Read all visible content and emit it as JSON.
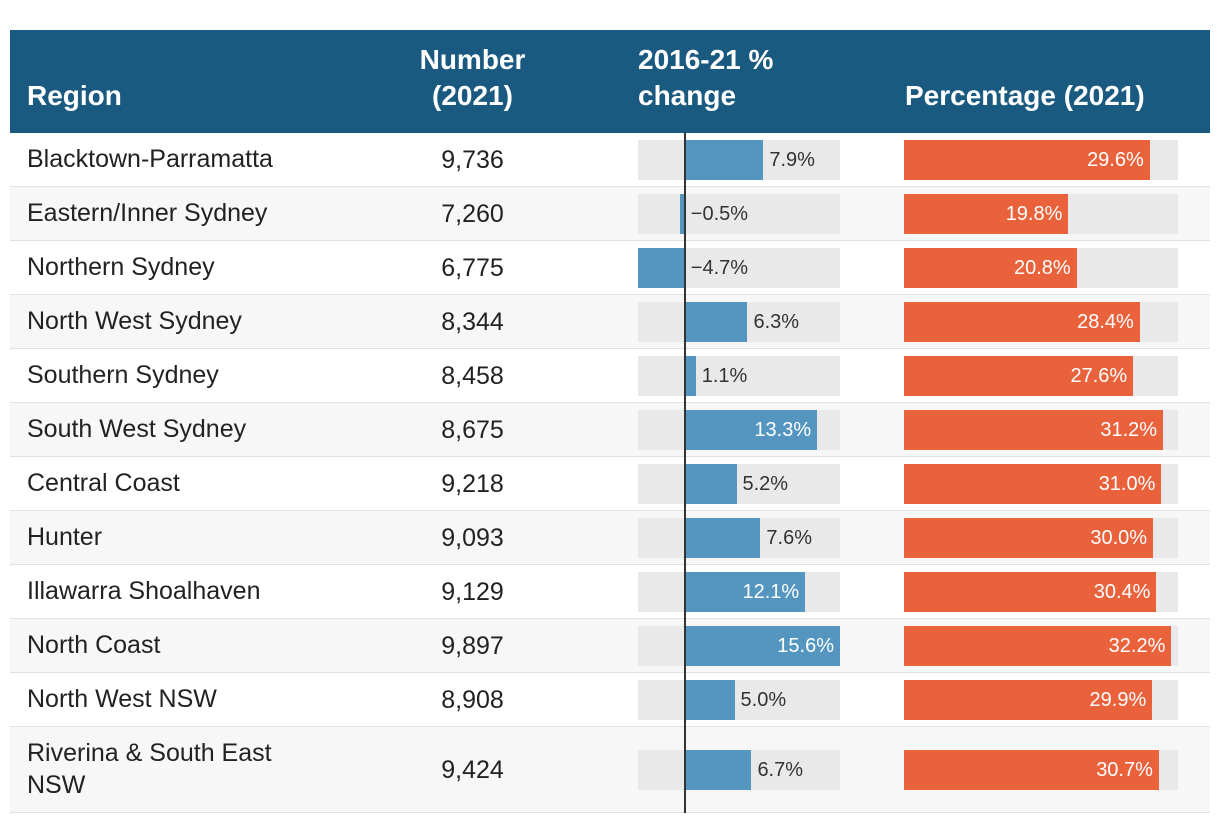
{
  "columns": {
    "region": "Region",
    "number": "Number (2021)",
    "change": "2016-21 % change",
    "percentage": "Percentage (2021)"
  },
  "colors": {
    "header_bg": "#1a5a80",
    "change_bar": "#5496c0",
    "percentage_bar": "#ea623c",
    "bar_background": "#e9e9e9"
  },
  "chart_data": {
    "type": "table",
    "title": "",
    "change_range": [
      -4.7,
      15.6
    ],
    "percentage_range": [
      0,
      33.0
    ],
    "rows": [
      {
        "region": "Blacktown-Parramatta",
        "number": "9,736",
        "change": 7.9,
        "change_label": "7.9%",
        "percentage": 29.6,
        "percentage_label": "29.6%"
      },
      {
        "region": "Eastern/Inner Sydney",
        "number": "7,260",
        "change": -0.5,
        "change_label": "−0.5%",
        "percentage": 19.8,
        "percentage_label": "19.8%"
      },
      {
        "region": "Northern Sydney",
        "number": "6,775",
        "change": -4.7,
        "change_label": "−4.7%",
        "percentage": 20.8,
        "percentage_label": "20.8%"
      },
      {
        "region": "North West Sydney",
        "number": "8,344",
        "change": 6.3,
        "change_label": "6.3%",
        "percentage": 28.4,
        "percentage_label": "28.4%"
      },
      {
        "region": "Southern Sydney",
        "number": "8,458",
        "change": 1.1,
        "change_label": "1.1%",
        "percentage": 27.6,
        "percentage_label": "27.6%"
      },
      {
        "region": "South West Sydney",
        "number": "8,675",
        "change": 13.3,
        "change_label": "13.3%",
        "percentage": 31.2,
        "percentage_label": "31.2%"
      },
      {
        "region": "Central Coast",
        "number": "9,218",
        "change": 5.2,
        "change_label": "5.2%",
        "percentage": 31.0,
        "percentage_label": "31.0%"
      },
      {
        "region": "Hunter",
        "number": "9,093",
        "change": 7.6,
        "change_label": "7.6%",
        "percentage": 30.0,
        "percentage_label": "30.0%"
      },
      {
        "region": "Illawarra Shoalhaven",
        "number": "9,129",
        "change": 12.1,
        "change_label": "12.1%",
        "percentage": 30.4,
        "percentage_label": "30.4%"
      },
      {
        "region": "North Coast",
        "number": "9,897",
        "change": 15.6,
        "change_label": "15.6%",
        "percentage": 32.2,
        "percentage_label": "32.2%"
      },
      {
        "region": "North West NSW",
        "number": "8,908",
        "change": 5.0,
        "change_label": "5.0%",
        "percentage": 29.9,
        "percentage_label": "29.9%"
      },
      {
        "region": "Riverina & South East NSW",
        "number": "9,424",
        "change": 6.7,
        "change_label": "6.7%",
        "percentage": 30.7,
        "percentage_label": "30.7%"
      }
    ]
  }
}
